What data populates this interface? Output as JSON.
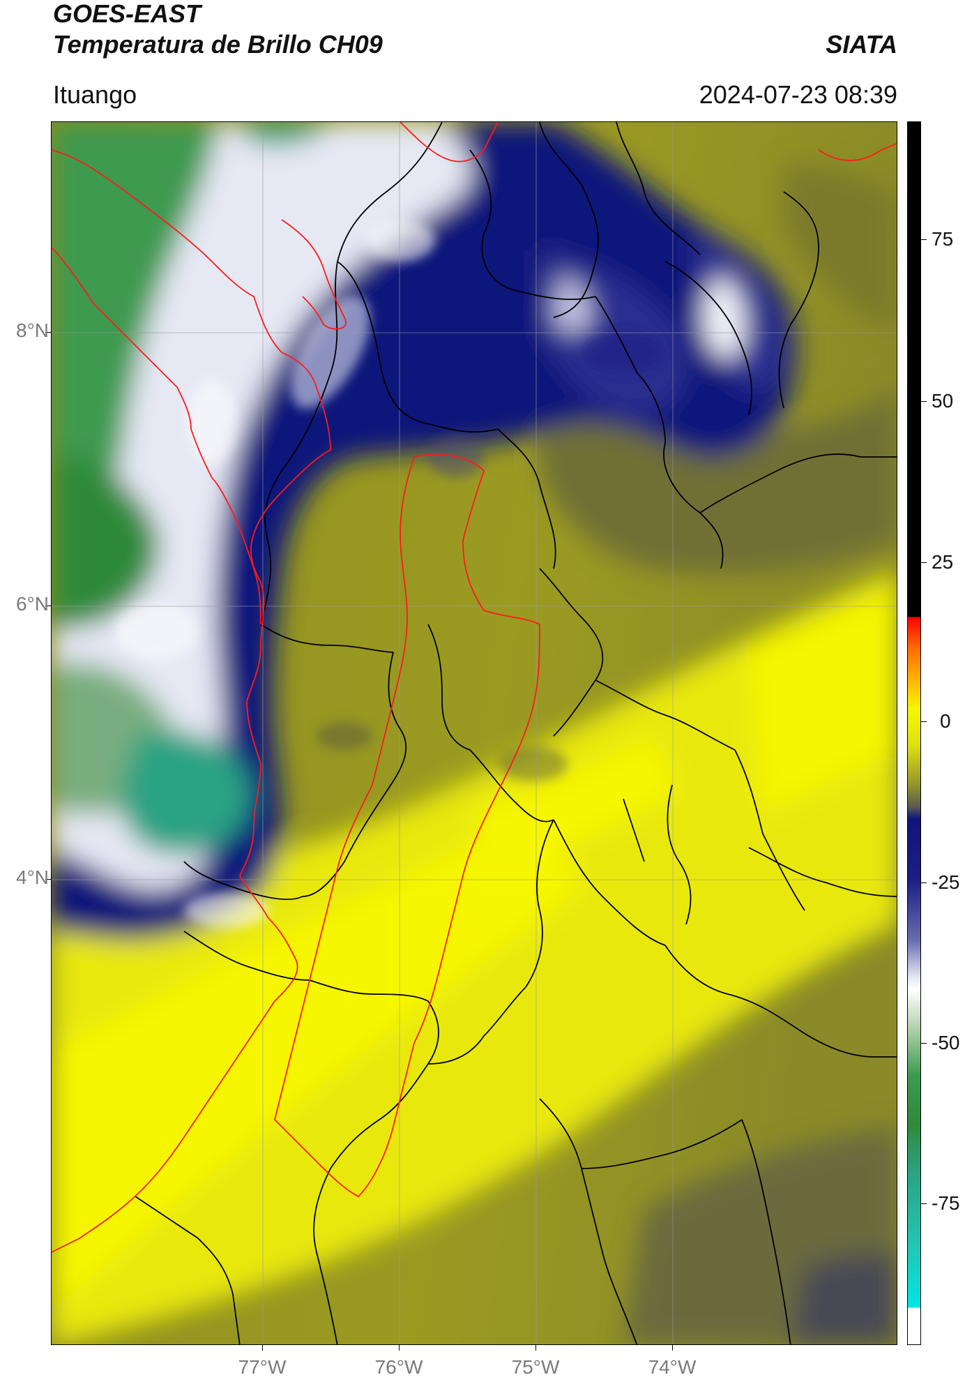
{
  "header": {
    "title_line1": "GOES-EAST",
    "title_line2": "Temperatura de Brillo CH09",
    "org": "SIATA",
    "location": "Ituango",
    "datetime": "2024-07-23 08:39"
  },
  "map": {
    "lat_ticks": [
      "8°N",
      "6°N",
      "4°N"
    ],
    "lon_ticks": [
      "77°W",
      "76°W",
      "75°W",
      "74°W"
    ],
    "colors": {
      "green": "#2f8a3a",
      "teal": "#2ba383",
      "white": "#f4f6fb",
      "navy": "#10157a",
      "olive": "#8d8d1f",
      "olive_dark": "#5e5e3d",
      "yellow": "#e8e80a",
      "bright_yellow": "#f6f600",
      "boundary": "#000000",
      "region_outline": "#ff1a1a"
    }
  },
  "colorbar": {
    "ticks": [
      "75",
      "50",
      "25",
      "0",
      "-25",
      "-50",
      "-75"
    ],
    "range": [
      -95,
      90
    ]
  }
}
